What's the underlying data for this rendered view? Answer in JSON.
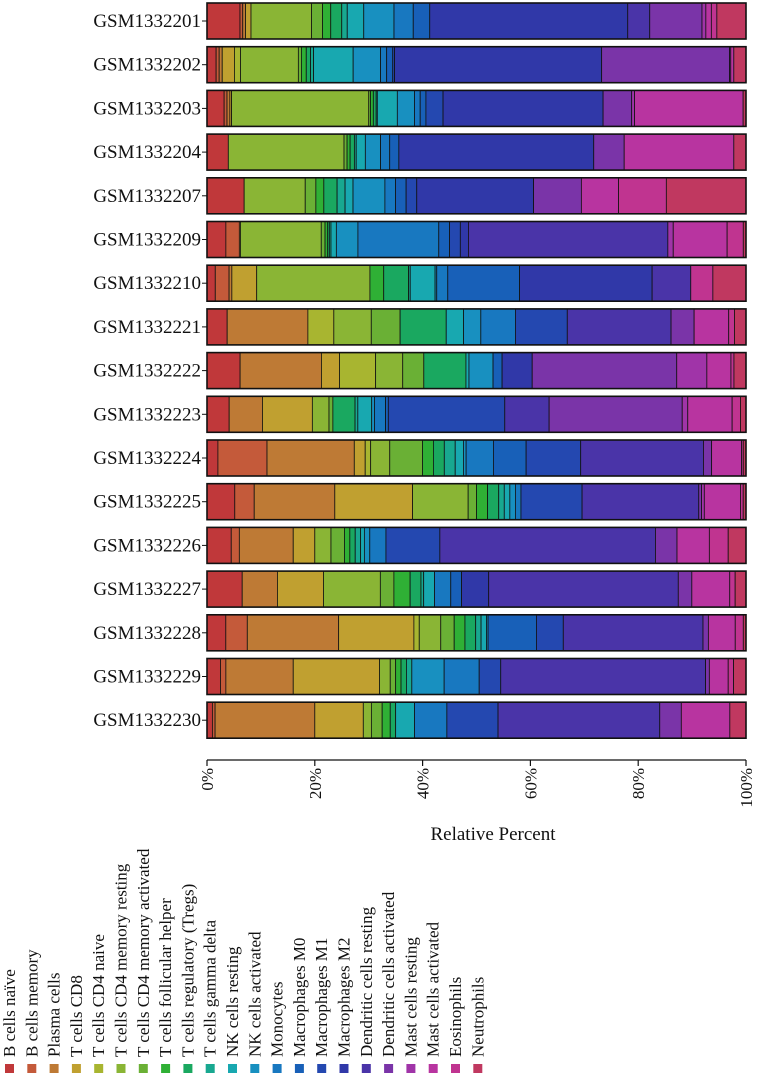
{
  "chart_data": {
    "type": "stacked-bar-horizontal",
    "xlabel": "Relative Percent",
    "xlim": [
      0,
      100
    ],
    "xticks": [
      "0%",
      "20%",
      "40%",
      "60%",
      "80%",
      "100%"
    ],
    "categories": [
      "B cells naïve",
      "B cells memory",
      "Plasma cells",
      "T cells CD8",
      "T cells CD4 naive",
      "T cells CD4 memory resting",
      "T cells CD4 memory activated",
      "T cells follicular helper",
      "T cells regulatory (Tregs)",
      "T cells gamma delta",
      "NK cells resting",
      "NK cells activated",
      "Monocytes",
      "Macrophages M0",
      "Macrophages M1",
      "Macrophages M2",
      "Dendritic cells resting",
      "Dendritic cells activated",
      "Mast cells resting",
      "Mast cells activated",
      "Eosinophils",
      "Neutrophils"
    ],
    "colors": [
      "#C0383A",
      "#C45A3A",
      "#BE7A35",
      "#C0A030",
      "#A8B530",
      "#8AB535",
      "#6AB035",
      "#2FB035",
      "#1AA860",
      "#18A890",
      "#18A8B0",
      "#1890C0",
      "#1878C0",
      "#1860B8",
      "#2448B0",
      "#3038A8",
      "#4A34A8",
      "#7A34A8",
      "#A034A8",
      "#B834A0",
      "#C03490",
      "#C03860"
    ],
    "samples": [
      {
        "name": "GSM1332201",
        "values": [
          6.0,
          0.5,
          0.5,
          1.0,
          0,
          11,
          2,
          1.5,
          2,
          1,
          3,
          5.5,
          3.5,
          3,
          0,
          36,
          4,
          9.5,
          0.7,
          1,
          1,
          5.3
        ]
      },
      {
        "name": "GSM1332202",
        "values": [
          1.5,
          0.5,
          0.5,
          2.0,
          1.0,
          9.5,
          0.5,
          0.8,
          0.7,
          0.5,
          6.5,
          4.5,
          1,
          1,
          0.3,
          34,
          0,
          21,
          0.2,
          0.5,
          0,
          2
        ]
      },
      {
        "name": "GSM1332203",
        "values": [
          3.0,
          0.5,
          0.5,
          0.3,
          0,
          24,
          0.3,
          0.5,
          0.5,
          0.2,
          3.5,
          3,
          1,
          1,
          3,
          28,
          0,
          5,
          0.5,
          19,
          0,
          0.5
        ]
      },
      {
        "name": "GSM1332204",
        "values": [
          3.5,
          0,
          0,
          0,
          0,
          19,
          0.5,
          0.5,
          0.7,
          0.3,
          1.5,
          2.5,
          1.5,
          1.5,
          0,
          32,
          0,
          5,
          0,
          18,
          0,
          2
        ]
      },
      {
        "name": "GSM1332207",
        "values": [
          7.0,
          0,
          0,
          0,
          0,
          11.5,
          2,
          1.5,
          2.5,
          1.5,
          1.5,
          6,
          2,
          2,
          2,
          22,
          0,
          9,
          0,
          7,
          9,
          15
        ]
      },
      {
        "name": "GSM1332209",
        "values": [
          3.5,
          2.5,
          0.2,
          0,
          0,
          15,
          0.7,
          0.5,
          0.3,
          0.3,
          1,
          4,
          15,
          2,
          2,
          1.5,
          37,
          0,
          1,
          10,
          3,
          0.5
        ]
      },
      {
        "name": "GSM1332210",
        "values": [
          1.5,
          2.5,
          0.5,
          4.5,
          0,
          20.5,
          0,
          2.5,
          4.5,
          0.3,
          4.5,
          0.3,
          2,
          13,
          0,
          24,
          7,
          0,
          0,
          0,
          4,
          6
        ]
      },
      {
        "name": "GSM1332221",
        "values": [
          3.5,
          0,
          14,
          0,
          4.5,
          6.5,
          5,
          0,
          8,
          0,
          3,
          3,
          6,
          0,
          9,
          0,
          18,
          4,
          0,
          6,
          1,
          2
        ]
      },
      {
        "name": "GSM1332222",
        "values": [
          5.5,
          0,
          13.5,
          3,
          6,
          4.5,
          3.5,
          0,
          7,
          0,
          0.5,
          4,
          0,
          1.5,
          0,
          5,
          0,
          24,
          5,
          4,
          0.5,
          2
        ]
      },
      {
        "name": "GSM1332223",
        "values": [
          4,
          0,
          6,
          9,
          0,
          3,
          0.7,
          0,
          4,
          0.5,
          2.5,
          0.5,
          2,
          0.5,
          21,
          0,
          8,
          24,
          1,
          8,
          1.5,
          1
        ]
      },
      {
        "name": "GSM1332224",
        "values": [
          2,
          9,
          16,
          2,
          1,
          3.5,
          6,
          2,
          2,
          2,
          1.5,
          0.5,
          5,
          6,
          10,
          0,
          22.5,
          1.5,
          0,
          5.5,
          0.3,
          0.5
        ]
      },
      {
        "name": "GSM1332225",
        "values": [
          5,
          3.5,
          14.5,
          14,
          0,
          10,
          1.5,
          2,
          2,
          1,
          1,
          1,
          1,
          0,
          11,
          0,
          21,
          0.5,
          0.5,
          6.5,
          0.5,
          0.5
        ]
      },
      {
        "name": "GSM1332226",
        "values": [
          4.5,
          1.5,
          10,
          4,
          0,
          3,
          2.5,
          1,
          1,
          1,
          0.7,
          1,
          3,
          0,
          10,
          0,
          40,
          4,
          0,
          6,
          3.5,
          3.3
        ]
      },
      {
        "name": "GSM1332227",
        "values": [
          6.5,
          0,
          6.5,
          8.5,
          0,
          10.5,
          2.5,
          3,
          2,
          0.5,
          2,
          0,
          3,
          2,
          0,
          5,
          35,
          2.5,
          0,
          7,
          1,
          2
        ]
      },
      {
        "name": "GSM1332228",
        "values": [
          3.5,
          4,
          17,
          14,
          1,
          4,
          2.5,
          2,
          2,
          1,
          1,
          0.3,
          0,
          9,
          5,
          0,
          26,
          1,
          0,
          5,
          1.5,
          0.5
        ]
      },
      {
        "name": "GSM1332229",
        "values": [
          2.5,
          1,
          12.5,
          16,
          0,
          2,
          1,
          1,
          1,
          1,
          0,
          6,
          6.5,
          0,
          4,
          0,
          38,
          0.7,
          0,
          3.5,
          1,
          2.3
        ]
      },
      {
        "name": "GSM1332230",
        "values": [
          1,
          0.5,
          18.5,
          9,
          0,
          1.5,
          2,
          1.5,
          1,
          0,
          3.5,
          0,
          6,
          0,
          9.5,
          0,
          30,
          4,
          0,
          9,
          0,
          3
        ]
      }
    ]
  }
}
